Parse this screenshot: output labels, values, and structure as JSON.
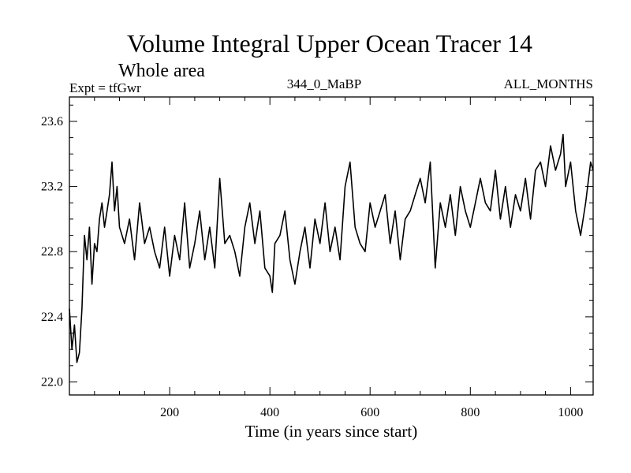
{
  "chart_data": {
    "type": "line",
    "title": "Volume Integral Upper Ocean Tracer 14",
    "subtitle": "Whole area",
    "experiment_label": "Expt = tfGwr",
    "run_label": "344_0_MaBP",
    "months_label": "ALL_MONTHS",
    "xlabel": "Time (in years since start)",
    "ylabel": "",
    "xlim": [
      0,
      1045
    ],
    "ylim": [
      21.92,
      23.75
    ],
    "x_ticks": [
      200,
      400,
      600,
      800,
      1000
    ],
    "y_ticks": [
      22.0,
      22.4,
      22.8,
      23.2,
      23.6
    ],
    "y_tick_labels": [
      "22.0",
      "22.4",
      "22.8",
      "23.2",
      "23.6"
    ],
    "grid": false,
    "series": [
      {
        "name": "Volume Integral Upper Ocean Tracer 14",
        "x": [
          0,
          5,
          10,
          15,
          20,
          25,
          30,
          35,
          40,
          45,
          50,
          55,
          60,
          65,
          70,
          75,
          80,
          85,
          90,
          95,
          100,
          110,
          120,
          130,
          140,
          150,
          160,
          170,
          180,
          190,
          200,
          210,
          220,
          230,
          240,
          250,
          260,
          270,
          280,
          290,
          300,
          310,
          320,
          330,
          340,
          350,
          360,
          370,
          380,
          390,
          400,
          405,
          410,
          420,
          430,
          440,
          450,
          460,
          470,
          480,
          490,
          500,
          510,
          520,
          530,
          540,
          550,
          560,
          570,
          580,
          590,
          600,
          610,
          620,
          630,
          640,
          650,
          660,
          670,
          680,
          690,
          700,
          710,
          720,
          730,
          740,
          750,
          760,
          770,
          780,
          790,
          800,
          810,
          820,
          830,
          840,
          850,
          860,
          870,
          880,
          890,
          900,
          910,
          920,
          930,
          940,
          950,
          960,
          970,
          980,
          985,
          990,
          1000,
          1010,
          1020,
          1030,
          1040,
          1045
        ],
        "values": [
          22.45,
          22.2,
          22.35,
          22.12,
          22.18,
          22.45,
          22.9,
          22.75,
          22.95,
          22.6,
          22.85,
          22.8,
          23.0,
          23.1,
          22.95,
          23.05,
          23.15,
          23.35,
          23.05,
          23.2,
          22.95,
          22.85,
          23.0,
          22.75,
          23.1,
          22.85,
          22.95,
          22.8,
          22.7,
          22.95,
          22.65,
          22.9,
          22.75,
          23.1,
          22.7,
          22.85,
          23.05,
          22.75,
          22.95,
          22.7,
          23.25,
          22.85,
          22.9,
          22.8,
          22.65,
          22.95,
          23.1,
          22.85,
          23.05,
          22.7,
          22.65,
          22.55,
          22.85,
          22.9,
          23.05,
          22.75,
          22.6,
          22.8,
          22.95,
          22.7,
          23.0,
          22.85,
          23.1,
          22.8,
          22.95,
          22.75,
          23.2,
          23.35,
          22.95,
          22.85,
          22.8,
          23.1,
          22.95,
          23.05,
          23.15,
          22.85,
          23.05,
          22.75,
          23.0,
          23.05,
          23.15,
          23.25,
          23.1,
          23.35,
          22.7,
          23.1,
          22.95,
          23.15,
          22.9,
          23.2,
          23.05,
          22.95,
          23.1,
          23.25,
          23.1,
          23.05,
          23.3,
          23.0,
          23.2,
          22.95,
          23.15,
          23.05,
          23.25,
          23.0,
          23.3,
          23.35,
          23.2,
          23.45,
          23.3,
          23.4,
          23.52,
          23.2,
          23.35,
          23.05,
          22.9,
          23.1,
          23.35,
          23.3
        ]
      }
    ]
  }
}
